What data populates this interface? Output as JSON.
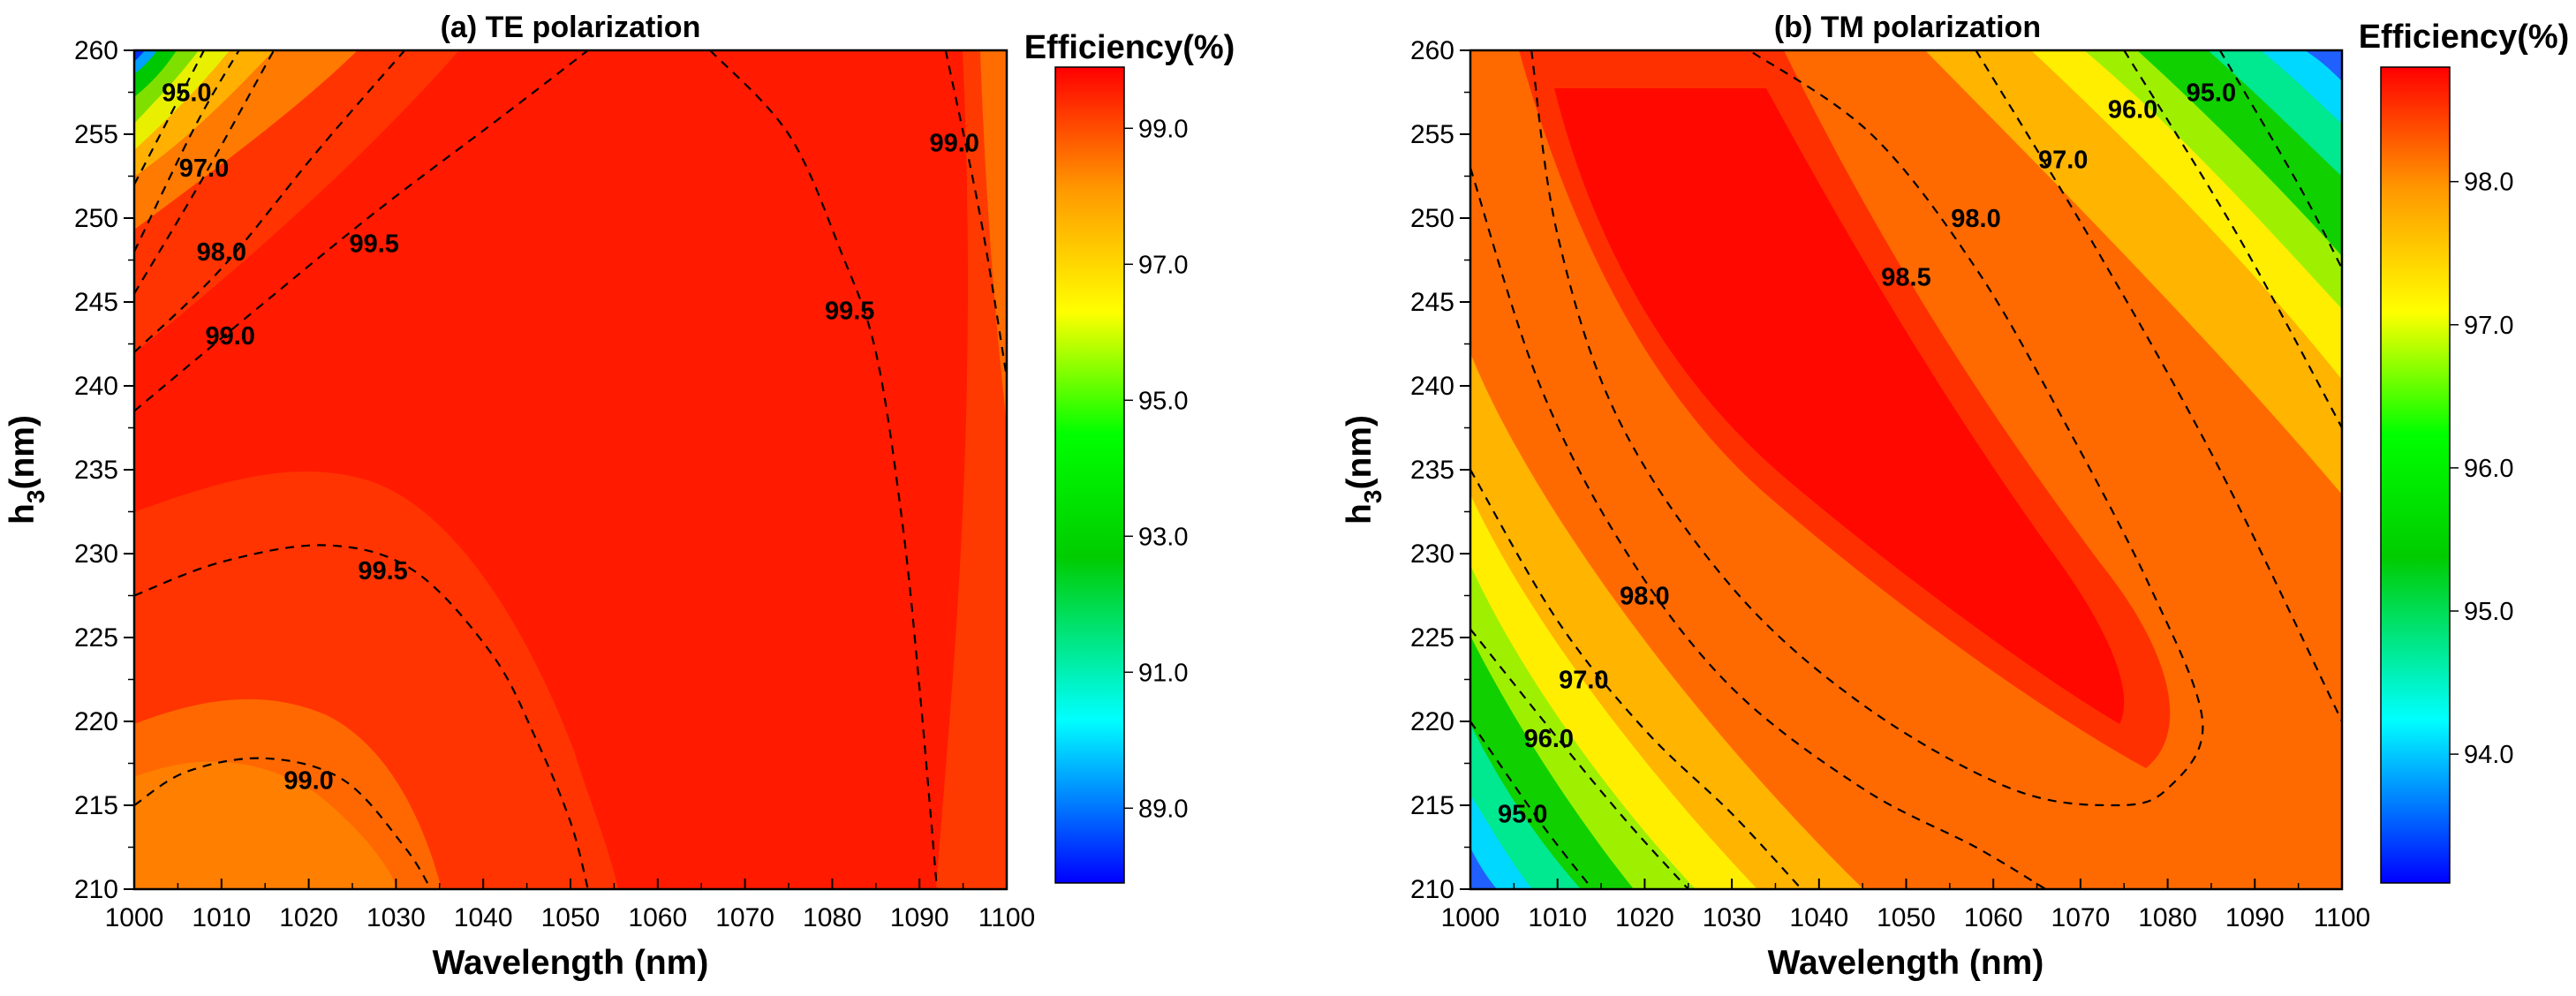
{
  "chart_data": [
    {
      "type": "contour",
      "panel": "a",
      "title": "(a) TE polarization",
      "xlabel": "Wavelength (nm)",
      "ylabel_main": "h",
      "ylabel_sub": "3",
      "ylabel_tail": "(nm)",
      "xlim": [
        1000,
        1100
      ],
      "ylim": [
        210,
        260
      ],
      "xticks": [
        1000,
        1010,
        1020,
        1030,
        1040,
        1050,
        1060,
        1070,
        1080,
        1090,
        1100
      ],
      "yticks": [
        210,
        215,
        220,
        225,
        230,
        235,
        240,
        245,
        250,
        255,
        260
      ],
      "colorbar": {
        "title": "Efficiency(%)",
        "range": [
          87.9,
          99.9
        ],
        "ticks": [
          89.0,
          91.0,
          93.0,
          95.0,
          97.0,
          99.0
        ],
        "tick_labels": [
          "89.0",
          "91.0",
          "93.0",
          "95.0",
          "97.0",
          "99.0"
        ]
      },
      "contours": [
        {
          "level": "95.0",
          "points": [
            [
              1000,
              252
            ],
            [
              1006,
              258
            ],
            [
              1008,
              260
            ]
          ]
        },
        {
          "level": "97.0",
          "points": [
            [
              1000,
              248
            ],
            [
              1007,
              255.5
            ],
            [
              1012,
              260
            ]
          ]
        },
        {
          "level": "98.0",
          "points": [
            [
              1000,
              245.5
            ],
            [
              1008,
              252.5
            ],
            [
              1016,
              260
            ]
          ]
        },
        {
          "level": "99.0",
          "points": [
            [
              1000,
              242
            ],
            [
              1010,
              247
            ],
            [
              1021,
              254
            ],
            [
              1031,
              260
            ]
          ]
        },
        {
          "level": "99.5",
          "points": [
            [
              1000,
              238.5
            ],
            [
              1015,
              245
            ],
            [
              1028,
              250.5
            ],
            [
              1042,
              256
            ],
            [
              1052,
              260
            ]
          ]
        },
        {
          "level": "99.5",
          "points": [
            [
              1066,
              260
            ],
            [
              1075,
              255
            ],
            [
              1081,
              248
            ],
            [
              1085,
              242
            ],
            [
              1088,
              232
            ],
            [
              1090,
              222
            ],
            [
              1092,
              210
            ]
          ]
        },
        {
          "level": "99.0",
          "points": [
            [
              1093,
              260
            ],
            [
              1097,
              250
            ],
            [
              1100,
              240.5
            ]
          ]
        },
        {
          "level": "99.5",
          "points": [
            [
              1000,
              227.5
            ],
            [
              1010,
              229.5
            ],
            [
              1022,
              230.5
            ],
            [
              1032,
              229
            ],
            [
              1041,
              224
            ],
            [
              1046,
              219
            ],
            [
              1050,
              214
            ],
            [
              1052,
              210
            ]
          ]
        },
        {
          "level": "99.0",
          "points": [
            [
              1000,
              215
            ],
            [
              1006,
              217
            ],
            [
              1015,
              217.8
            ],
            [
              1024,
              216.5
            ],
            [
              1031,
              212.5
            ],
            [
              1034,
              210
            ]
          ]
        }
      ],
      "contour_labels": [
        {
          "text": "95.0",
          "x": 1006,
          "y": 257.5
        },
        {
          "text": "97.0",
          "x": 1008,
          "y": 253
        },
        {
          "text": "98.0",
          "x": 1010,
          "y": 248
        },
        {
          "text": "99.0",
          "x": 1011,
          "y": 243
        },
        {
          "text": "99.5",
          "x": 1027.5,
          "y": 248.5
        },
        {
          "text": "99.5",
          "x": 1082,
          "y": 244.5
        },
        {
          "text": "99.0",
          "x": 1094,
          "y": 254.5
        },
        {
          "text": "99.5",
          "x": 1028.5,
          "y": 229
        },
        {
          "text": "99.0",
          "x": 1020,
          "y": 216.5
        }
      ]
    },
    {
      "type": "contour",
      "panel": "b",
      "title": "(b) TM polarization",
      "xlabel": "Wavelength (nm)",
      "ylabel_main": "h",
      "ylabel_sub": "3",
      "ylabel_tail": "(nm)",
      "xlim": [
        1000,
        1100
      ],
      "ylim": [
        210,
        260
      ],
      "xticks": [
        1000,
        1010,
        1020,
        1030,
        1040,
        1050,
        1060,
        1070,
        1080,
        1090,
        1100
      ],
      "yticks": [
        210,
        215,
        220,
        225,
        230,
        235,
        240,
        245,
        250,
        255,
        260
      ],
      "colorbar": {
        "title": "Efficiency(%)",
        "range": [
          93.1,
          98.8
        ],
        "ticks": [
          94.0,
          95.0,
          96.0,
          97.0,
          98.0
        ],
        "tick_labels": [
          "94.0",
          "95.0",
          "96.0",
          "97.0",
          "98.0"
        ]
      },
      "contours": [
        {
          "level": "95.0",
          "points": [
            [
              1000,
              220
            ],
            [
              1008,
              214
            ],
            [
              1014,
              210
            ]
          ]
        },
        {
          "level": "96.0",
          "points": [
            [
              1000,
              225.5
            ],
            [
              1010,
              219
            ],
            [
              1018,
              214
            ],
            [
              1025,
              210
            ]
          ]
        },
        {
          "level": "97.0",
          "points": [
            [
              1000,
              235
            ],
            [
              1010,
              226
            ],
            [
              1020,
              219.5
            ],
            [
              1030,
              214.5
            ],
            [
              1038,
              210
            ]
          ]
        },
        {
          "level": "98.0",
          "points": [
            [
              1000,
              253
            ],
            [
              1008,
              240
            ],
            [
              1018,
              230
            ],
            [
              1030,
              222
            ],
            [
              1045,
              216
            ],
            [
              1058,
              212.5
            ],
            [
              1066,
              210
            ]
          ]
        },
        {
          "level": "98.5",
          "points": [
            [
              1007,
              260
            ],
            [
              1010,
              249
            ],
            [
              1017,
              238
            ],
            [
              1030,
              228
            ],
            [
              1045,
              221
            ],
            [
              1062,
              216
            ],
            [
              1074,
              215
            ],
            [
              1080,
              216
            ],
            [
              1084,
              220
            ],
            [
              1078,
              228
            ],
            [
              1068,
              238
            ],
            [
              1058,
              247
            ],
            [
              1046,
              255
            ],
            [
              1032,
              260
            ]
          ]
        },
        {
          "level": "97.0",
          "points": [
            [
              1058,
              260
            ],
            [
              1072,
              248
            ],
            [
              1086,
              235
            ],
            [
              1100,
              220
            ]
          ]
        },
        {
          "level": "96.0",
          "points": [
            [
              1075,
              260
            ],
            [
              1088,
              249
            ],
            [
              1100,
              237.5
            ]
          ]
        },
        {
          "level": "95.0",
          "points": [
            [
              1086,
              260
            ],
            [
              1095,
              252
            ],
            [
              1100,
              247
            ]
          ]
        }
      ],
      "contour_labels": [
        {
          "text": "95.0",
          "x": 1006,
          "y": 214.5
        },
        {
          "text": "96.0",
          "x": 1009,
          "y": 219
        },
        {
          "text": "97.0",
          "x": 1013,
          "y": 222.5
        },
        {
          "text": "98.0",
          "x": 1020,
          "y": 227.5
        },
        {
          "text": "98.5",
          "x": 1050,
          "y": 246.5
        },
        {
          "text": "98.0",
          "x": 1058,
          "y": 250
        },
        {
          "text": "97.0",
          "x": 1068,
          "y": 253.5
        },
        {
          "text": "96.0",
          "x": 1076,
          "y": 256.5
        },
        {
          "text": "95.0",
          "x": 1085,
          "y": 257.5
        }
      ]
    }
  ]
}
